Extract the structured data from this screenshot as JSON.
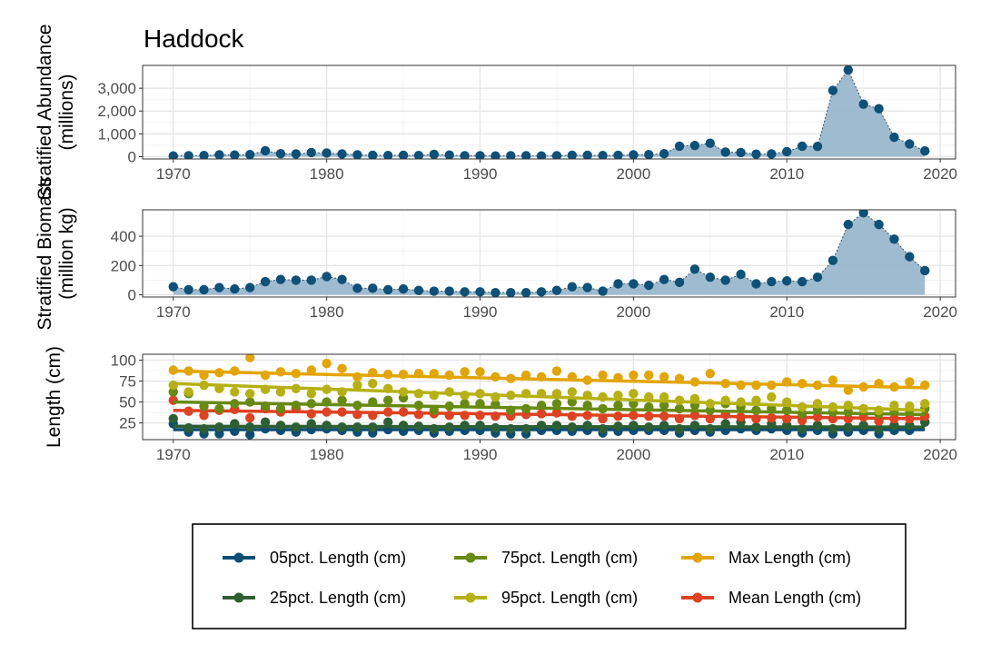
{
  "title": "Haddock",
  "colors": {
    "area_fill": "#9ab7cc",
    "point_blue": "#0e5077",
    "p05": "#0d4d73",
    "p25": "#2e5e34",
    "p75": "#678a13",
    "p95": "#b5b114",
    "max": "#e2a507",
    "mean": "#dd4222"
  },
  "legend": {
    "placement": "bottom",
    "items": [
      {
        "key": "p05",
        "label": "05pct. Length (cm)"
      },
      {
        "key": "p75",
        "label": "75pct. Length (cm)"
      },
      {
        "key": "max",
        "label": "Max Length (cm)"
      },
      {
        "key": "p25",
        "label": "25pct. Length (cm)"
      },
      {
        "key": "p95",
        "label": "95pct. Length (cm)"
      },
      {
        "key": "mean",
        "label": "Mean Length (cm)"
      }
    ]
  },
  "chart_data": [
    {
      "type": "area",
      "ylabel_line1": "Stratified Abundance",
      "ylabel_line2": "(millions)",
      "xlim": [
        1968,
        2021
      ],
      "ylim": [
        -100,
        4000
      ],
      "xticks": [
        1970,
        1980,
        1990,
        2000,
        2010,
        2020
      ],
      "yticks": [
        0,
        1000,
        2000,
        3000
      ],
      "ytick_labels": [
        "0",
        "1,000",
        "2,000",
        "3,000"
      ],
      "grid": true,
      "x": [
        1970,
        1971,
        1972,
        1973,
        1974,
        1975,
        1976,
        1977,
        1978,
        1979,
        1980,
        1981,
        1982,
        1983,
        1984,
        1985,
        1986,
        1987,
        1988,
        1989,
        1990,
        1991,
        1992,
        1993,
        1994,
        1995,
        1996,
        1997,
        1998,
        1999,
        2000,
        2001,
        2002,
        2003,
        2004,
        2005,
        2006,
        2007,
        2008,
        2009,
        2010,
        2011,
        2012,
        2013,
        2014,
        2015,
        2016,
        2017,
        2018,
        2019
      ],
      "y": [
        30,
        40,
        50,
        80,
        70,
        90,
        260,
        130,
        120,
        180,
        160,
        120,
        80,
        60,
        50,
        60,
        50,
        100,
        70,
        40,
        40,
        30,
        40,
        40,
        30,
        40,
        60,
        60,
        50,
        60,
        80,
        90,
        130,
        460,
        490,
        590,
        200,
        180,
        110,
        120,
        220,
        460,
        450,
        2900,
        3800,
        2300,
        2100,
        850,
        560,
        250
      ]
    },
    {
      "type": "area",
      "ylabel_line1": "Stratified Biomass",
      "ylabel_line2": "(million kg)",
      "xlim": [
        1968,
        2021
      ],
      "ylim": [
        -15,
        580
      ],
      "xticks": [
        1970,
        1980,
        1990,
        2000,
        2010,
        2020
      ],
      "yticks": [
        0,
        200,
        400
      ],
      "ytick_labels": [
        "0",
        "200",
        "400"
      ],
      "grid": true,
      "x": [
        1970,
        1971,
        1972,
        1973,
        1974,
        1975,
        1976,
        1977,
        1978,
        1979,
        1980,
        1981,
        1982,
        1983,
        1984,
        1985,
        1986,
        1987,
        1988,
        1989,
        1990,
        1991,
        1992,
        1993,
        1994,
        1995,
        1996,
        1997,
        1998,
        1999,
        2000,
        2001,
        2002,
        2003,
        2004,
        2005,
        2006,
        2007,
        2008,
        2009,
        2010,
        2011,
        2012,
        2013,
        2014,
        2015,
        2016,
        2017,
        2018,
        2019
      ],
      "y": [
        55,
        35,
        35,
        50,
        40,
        50,
        90,
        105,
        100,
        100,
        125,
        105,
        45,
        45,
        35,
        40,
        30,
        25,
        25,
        20,
        20,
        15,
        15,
        15,
        20,
        30,
        55,
        50,
        25,
        75,
        75,
        65,
        105,
        85,
        175,
        120,
        100,
        140,
        75,
        90,
        95,
        90,
        120,
        235,
        480,
        560,
        480,
        380,
        260,
        165
      ]
    },
    {
      "type": "scatter",
      "ylabel_line1": "Length (cm)",
      "xlim": [
        1968,
        2021
      ],
      "ylim": [
        5,
        107
      ],
      "xticks": [
        1970,
        1980,
        1990,
        2000,
        2010,
        2020
      ],
      "yticks": [
        25,
        50,
        75,
        100
      ],
      "ytick_labels": [
        "25",
        "50",
        "75",
        "100"
      ],
      "grid": true,
      "x": [
        1970,
        1971,
        1972,
        1973,
        1974,
        1975,
        1976,
        1977,
        1978,
        1979,
        1980,
        1981,
        1982,
        1983,
        1984,
        1985,
        1986,
        1987,
        1988,
        1989,
        1990,
        1991,
        1992,
        1993,
        1994,
        1995,
        1996,
        1997,
        1998,
        1999,
        2000,
        2001,
        2002,
        2003,
        2004,
        2005,
        2006,
        2007,
        2008,
        2009,
        2010,
        2011,
        2012,
        2013,
        2014,
        2015,
        2016,
        2017,
        2018,
        2019
      ],
      "series": [
        {
          "key": "p05",
          "name": "05pct. Length (cm)",
          "trend": [
            17,
            17
          ],
          "values": [
            24,
            14,
            12,
            12,
            15,
            11,
            18,
            16,
            14,
            17,
            18,
            16,
            14,
            13,
            17,
            15,
            16,
            13,
            15,
            16,
            16,
            13,
            12,
            12,
            16,
            16,
            15,
            16,
            13,
            15,
            16,
            16,
            16,
            13,
            16,
            14,
            16,
            18,
            16,
            18,
            16,
            13,
            16,
            12,
            14,
            16,
            12,
            16,
            16,
            26
          ]
        },
        {
          "key": "p25",
          "name": "25pct. Length (cm)",
          "trend": [
            21,
            20
          ],
          "values": [
            30,
            19,
            18,
            20,
            24,
            20,
            26,
            22,
            20,
            24,
            22,
            20,
            20,
            20,
            26,
            22,
            21,
            18,
            20,
            22,
            22,
            19,
            18,
            18,
            22,
            22,
            20,
            22,
            18,
            21,
            22,
            20,
            22,
            18,
            22,
            18,
            24,
            26,
            20,
            24,
            22,
            18,
            22,
            18,
            20,
            22,
            18,
            22,
            22,
            26
          ]
        },
        {
          "key": "mean",
          "name": "Mean Length (cm)",
          "trend": [
            40,
            30
          ],
          "values": [
            52,
            39,
            34,
            40,
            41,
            31,
            42,
            38,
            42,
            36,
            38,
            38,
            35,
            34,
            38,
            38,
            35,
            36,
            34,
            34,
            34,
            33,
            33,
            35,
            36,
            37,
            33,
            34,
            30,
            33,
            34,
            33,
            33,
            30,
            34,
            30,
            35,
            32,
            30,
            31,
            30,
            28,
            32,
            30,
            30,
            32,
            27,
            30,
            30,
            33
          ]
        },
        {
          "key": "p75",
          "name": "75pct. Length (cm)",
          "trend": [
            50,
            35
          ],
          "values": [
            62,
            60,
            45,
            42,
            48,
            50,
            45,
            42,
            46,
            48,
            50,
            52,
            46,
            50,
            52,
            55,
            46,
            40,
            45,
            48,
            48,
            47,
            40,
            42,
            46,
            48,
            50,
            46,
            42,
            46,
            48,
            44,
            46,
            42,
            46,
            40,
            48,
            44,
            40,
            42,
            40,
            36,
            42,
            38,
            38,
            42,
            36,
            40,
            40,
            42
          ]
        },
        {
          "key": "p95",
          "name": "95pct. Length (cm)",
          "trend": [
            72,
            40
          ],
          "values": [
            70,
            62,
            70,
            66,
            62,
            60,
            65,
            62,
            66,
            60,
            65,
            62,
            70,
            72,
            66,
            62,
            60,
            58,
            62,
            58,
            60,
            56,
            58,
            60,
            60,
            60,
            62,
            58,
            56,
            58,
            60,
            56,
            56,
            52,
            54,
            48,
            52,
            50,
            52,
            56,
            50,
            44,
            48,
            44,
            46,
            42,
            40,
            46,
            45,
            48
          ]
        },
        {
          "key": "max",
          "name": "Max Length (cm)",
          "trend": [
            87,
            67
          ],
          "values": [
            88,
            87,
            82,
            85,
            87,
            103,
            82,
            86,
            84,
            88,
            96,
            90,
            80,
            85,
            83,
            83,
            84,
            84,
            82,
            86,
            86,
            80,
            78,
            82,
            80,
            87,
            80,
            76,
            82,
            79,
            82,
            82,
            80,
            78,
            74,
            84,
            72,
            70,
            70,
            70,
            74,
            72,
            70,
            76,
            64,
            68,
            72,
            68,
            74,
            70
          ]
        }
      ]
    }
  ]
}
